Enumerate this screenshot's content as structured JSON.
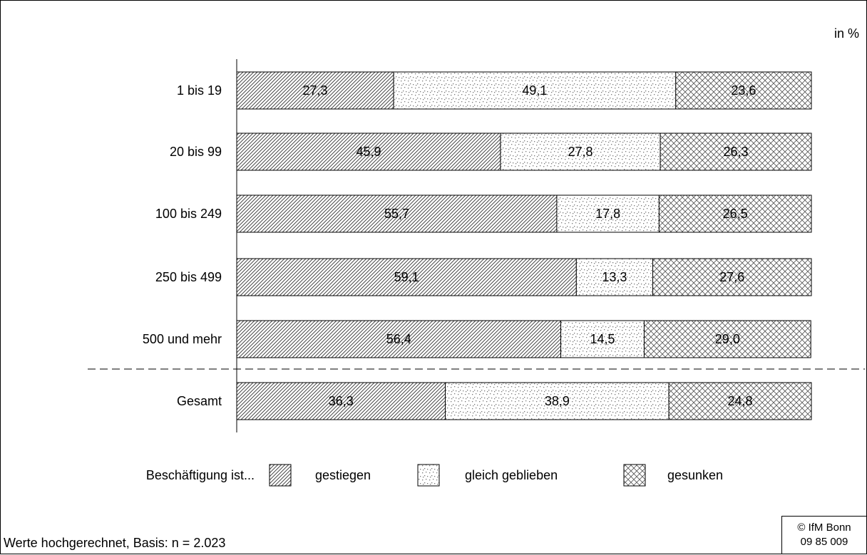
{
  "unit_label": "in %",
  "footnote": "Werte hochgerechnet, Basis: n = 2.023",
  "copyright": {
    "line1": "© IfM Bonn",
    "line2": "09 85 009"
  },
  "chart_data": {
    "type": "bar",
    "stacked": true,
    "orientation": "horizontal",
    "xlim": [
      0,
      100
    ],
    "grid": false,
    "categories": [
      "1 bis 19",
      "20 bis 99",
      "100 bis 249",
      "250 bis 499",
      "500 und mehr",
      "Gesamt"
    ],
    "series": [
      {
        "name": "gestiegen",
        "values": [
          27.3,
          45.9,
          55.7,
          59.1,
          56.4,
          36.3
        ],
        "labels": [
          "27,3",
          "45,9",
          "55,7",
          "59,1",
          "56,4",
          "36,3"
        ],
        "pattern": "diagonal"
      },
      {
        "name": "gleich geblieben",
        "values": [
          49.1,
          27.8,
          17.8,
          13.3,
          14.5,
          38.9
        ],
        "labels": [
          "49,1",
          "27,8",
          "17,8",
          "13,3",
          "14,5",
          "38,9"
        ],
        "pattern": "dots"
      },
      {
        "name": "gesunken",
        "values": [
          23.6,
          26.3,
          26.5,
          27.6,
          29.0,
          24.8
        ],
        "labels": [
          "23,6",
          "26,3",
          "26,5",
          "27,6",
          "29,0",
          "24,8"
        ],
        "pattern": "crosshatch"
      }
    ],
    "legend": {
      "title": "Beschäftigung ist...",
      "position": "bottom"
    },
    "separator_before": "Gesamt"
  }
}
